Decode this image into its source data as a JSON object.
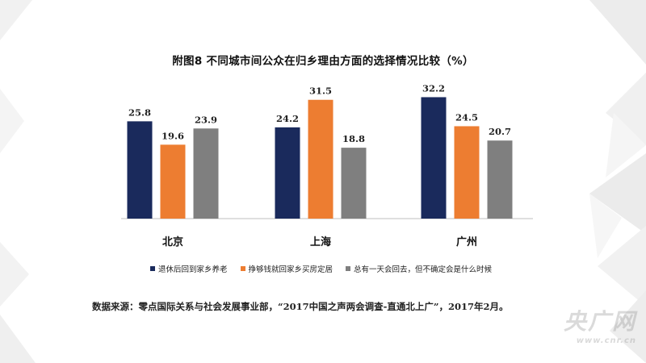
{
  "chart_data": {
    "type": "bar",
    "title": "附图8 不同城市间公众在归乡理由方面的选择情况比较（%）",
    "categories": [
      "北京",
      "上海",
      "广州"
    ],
    "series": [
      {
        "name": "退休后回到家乡养老",
        "color": "#1a2a5c",
        "values": [
          25.8,
          24.2,
          32.2
        ],
        "labels": [
          "25.8",
          "24.2",
          "32.2"
        ]
      },
      {
        "name": "挣够钱就回家乡买房定居",
        "color": "#ed7d31",
        "values": [
          19.6,
          31.5,
          24.5
        ],
        "labels": [
          "19.6",
          "31.5",
          "24.5"
        ]
      },
      {
        "name": "总有一天会回去，但不确定会是什么时候",
        "color": "#7f7f7f",
        "values": [
          23.9,
          18.8,
          20.7
        ],
        "labels": [
          "23.9",
          "18.8",
          "20.7"
        ]
      }
    ],
    "ylim": [
      0,
      40
    ],
    "xlabel": "",
    "ylabel": "",
    "grid": false,
    "legend_position": "bottom"
  },
  "source": "数据来源：零点国际关系与社会发展事业部，“2017中国之声两会调查-直通北上广”，2017年2月。",
  "watermark": {
    "main": "央广网",
    "sub": "www.cnr.cn"
  }
}
